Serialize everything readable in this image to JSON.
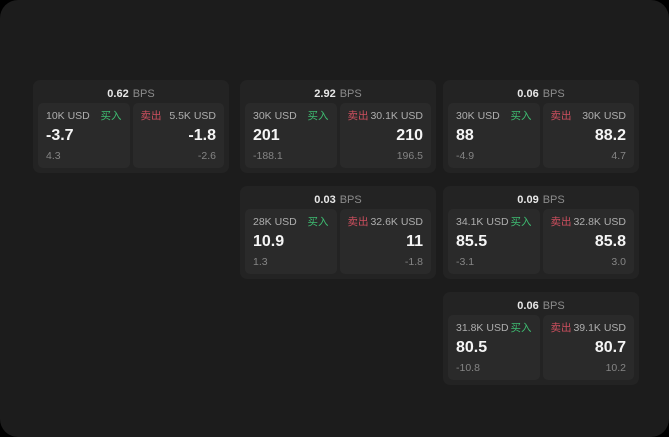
{
  "labels": {
    "buy": "买入",
    "sell": "卖出",
    "bps": "BPS"
  },
  "colors": {
    "buy_green": "#3ebd72",
    "sell_red": "#cd4f5e",
    "screen_bg": "#1c1c1c",
    "card_bg": "#232323",
    "panel_bg": "#2a2a2a"
  },
  "cards": [
    {
      "col": 1,
      "row": 1,
      "bps": "0.62",
      "buy": {
        "amount": "10K USD",
        "value": "-3.7",
        "sub": "4.3"
      },
      "sell": {
        "amount": "5.5K USD",
        "value": "-1.8",
        "sub": "-2.6"
      }
    },
    {
      "col": 2,
      "row": 1,
      "bps": "2.92",
      "buy": {
        "amount": "30K USD",
        "value": "201",
        "sub": "-188.1"
      },
      "sell": {
        "amount": "30.1K USD",
        "value": "210",
        "sub": "196.5"
      }
    },
    {
      "col": 3,
      "row": 1,
      "bps": "0.06",
      "buy": {
        "amount": "30K USD",
        "value": "88",
        "sub": "-4.9"
      },
      "sell": {
        "amount": "30K USD",
        "value": "88.2",
        "sub": "4.7"
      }
    },
    {
      "col": 2,
      "row": 2,
      "bps": "0.03",
      "buy": {
        "amount": "28K USD",
        "value": "10.9",
        "sub": "1.3"
      },
      "sell": {
        "amount": "32.6K USD",
        "value": "11",
        "sub": "-1.8"
      }
    },
    {
      "col": 3,
      "row": 2,
      "bps": "0.09",
      "buy": {
        "amount": "34.1K USD",
        "value": "85.5",
        "sub": "-3.1"
      },
      "sell": {
        "amount": "32.8K USD",
        "value": "85.8",
        "sub": "3.0"
      }
    },
    {
      "col": 3,
      "row": 3,
      "bps": "0.06",
      "buy": {
        "amount": "31.8K USD",
        "value": "80.5",
        "sub": "-10.8"
      },
      "sell": {
        "amount": "39.1K USD",
        "value": "80.7",
        "sub": "10.2"
      }
    }
  ]
}
